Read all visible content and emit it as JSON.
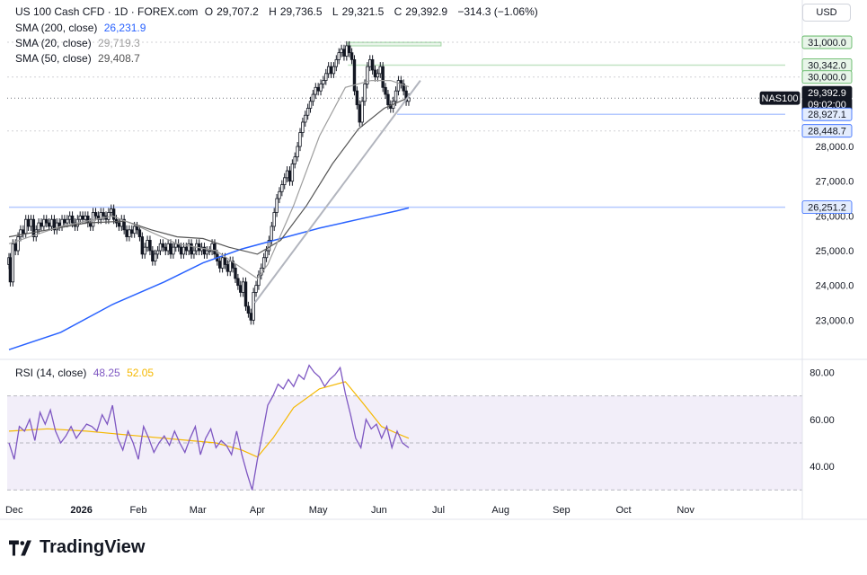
{
  "header": {
    "symbol_title": "US 100 Cash CFD · 1D · FOREX.com",
    "ohlc": [
      {
        "label": "O",
        "value": "29,707.2"
      },
      {
        "label": "H",
        "value": "29,736.5"
      },
      {
        "label": "L",
        "value": "29,321.5"
      },
      {
        "label": "C",
        "value": "29,392.9"
      }
    ],
    "change": "−314.3 (−1.06%)",
    "currency": "USD"
  },
  "indicators": [
    {
      "label": "SMA (200, close)",
      "value": "26,231.9",
      "color": "#2962ff"
    },
    {
      "label": "SMA (20, close)",
      "value": "29,719.3",
      "color": "#9e9e9e"
    },
    {
      "label": "SMA (50, close)",
      "value": "29,408.7",
      "color": "#555555"
    }
  ],
  "rsi_legend": {
    "label": "RSI (14, close)",
    "value1": "48.25",
    "value1_color": "#7e57c2",
    "value2": "52.05",
    "value2_color": "#f5b800"
  },
  "price_labels": [
    {
      "text": "31,000.0",
      "value": 31000,
      "style": "green"
    },
    {
      "text": "30,342.0",
      "value": 30342,
      "style": "green"
    },
    {
      "text": "30,000.0",
      "value": 30000,
      "style": "green"
    },
    {
      "text": "NAS100",
      "value": 29392.9,
      "style": "tag"
    },
    {
      "text": "29,392.9",
      "value": 29392.9,
      "style": "dark"
    },
    {
      "text": "09:02:00",
      "value": 29392.9,
      "style": "dark2"
    },
    {
      "text": "28,927.1",
      "value": 28927.1,
      "style": "blue"
    },
    {
      "text": "28,448.7",
      "value": 28448.7,
      "style": "blue"
    },
    {
      "text": "26,251.2",
      "value": 26251.2,
      "style": "blue"
    }
  ],
  "brand": "TradingView",
  "chart_data": {
    "type": "candlestick",
    "price_axis": {
      "ticks": [
        23000,
        24000,
        25000,
        26000,
        27000,
        28000
      ],
      "tick_labels": [
        "23,000.0",
        "24,000.0",
        "25,000.0",
        "26,000.0",
        "27,000.0",
        "28,000.0"
      ],
      "range": [
        22000,
        31700
      ]
    },
    "rsi_axis": {
      "ticks": [
        40,
        60,
        80
      ],
      "tick_labels": [
        "40.00",
        "60.00",
        "80.00"
      ],
      "range": [
        29,
        84
      ],
      "band": [
        30,
        70
      ]
    },
    "x_axis_labels": [
      "Dec",
      "2026",
      "Feb",
      "Mar",
      "Apr",
      "May",
      "Jun",
      "Jul",
      "Aug",
      "Sep",
      "Oct",
      "Nov"
    ],
    "x_axis_label_days": [
      4,
      56,
      100,
      146,
      192,
      239,
      286,
      332,
      380,
      427,
      475,
      523
    ],
    "price_closes": [
      [
        0,
        24800
      ],
      [
        1,
        24100
      ],
      [
        3,
        25200
      ],
      [
        5,
        25000
      ],
      [
        7,
        25400
      ],
      [
        9,
        25600
      ],
      [
        11,
        25500
      ],
      [
        13,
        25900
      ],
      [
        15,
        25700
      ],
      [
        17,
        25900
      ],
      [
        19,
        25400
      ],
      [
        21,
        25600
      ],
      [
        23,
        25800
      ],
      [
        25,
        25700
      ],
      [
        27,
        25900
      ],
      [
        29,
        25800
      ],
      [
        31,
        25700
      ],
      [
        33,
        25900
      ],
      [
        35,
        25600
      ],
      [
        37,
        25800
      ],
      [
        39,
        25700
      ],
      [
        41,
        25900
      ],
      [
        43,
        25800
      ],
      [
        45,
        25900
      ],
      [
        47,
        26000
      ],
      [
        49,
        25800
      ],
      [
        51,
        25700
      ],
      [
        53,
        25900
      ],
      [
        55,
        26000
      ],
      [
        57,
        25900
      ],
      [
        59,
        26000
      ],
      [
        61,
        25800
      ],
      [
        63,
        25700
      ],
      [
        65,
        26100
      ],
      [
        67,
        26000
      ],
      [
        69,
        25900
      ],
      [
        71,
        26100
      ],
      [
        73,
        26000
      ],
      [
        75,
        25900
      ],
      [
        77,
        26100
      ],
      [
        79,
        26200
      ],
      [
        81,
        25900
      ],
      [
        83,
        25800
      ],
      [
        85,
        25700
      ],
      [
        87,
        25900
      ],
      [
        89,
        25600
      ],
      [
        91,
        25400
      ],
      [
        93,
        25600
      ],
      [
        95,
        25500
      ],
      [
        97,
        25700
      ],
      [
        99,
        25600
      ],
      [
        101,
        25400
      ],
      [
        103,
        24900
      ],
      [
        105,
        25100
      ],
      [
        107,
        25300
      ],
      [
        109,
        25000
      ],
      [
        111,
        24700
      ],
      [
        113,
        24900
      ],
      [
        115,
        25000
      ],
      [
        117,
        25200
      ],
      [
        119,
        25100
      ],
      [
        121,
        25000
      ],
      [
        123,
        25200
      ],
      [
        125,
        24900
      ],
      [
        127,
        25100
      ],
      [
        129,
        25200
      ],
      [
        131,
        25100
      ],
      [
        133,
        24900
      ],
      [
        135,
        25100
      ],
      [
        137,
        25000
      ],
      [
        139,
        25200
      ],
      [
        141,
        24900
      ],
      [
        143,
        25000
      ],
      [
        145,
        25200
      ],
      [
        147,
        25000
      ],
      [
        149,
        25100
      ],
      [
        151,
        24900
      ],
      [
        153,
        25000
      ],
      [
        155,
        25000
      ],
      [
        157,
        25200
      ],
      [
        159,
        24900
      ],
      [
        161,
        24700
      ],
      [
        163,
        24500
      ],
      [
        165,
        24800
      ],
      [
        167,
        24600
      ],
      [
        169,
        24400
      ],
      [
        171,
        24700
      ],
      [
        173,
        24500
      ],
      [
        175,
        24200
      ],
      [
        177,
        24000
      ],
      [
        179,
        23800
      ],
      [
        181,
        24100
      ],
      [
        183,
        23400
      ],
      [
        185,
        23200
      ],
      [
        187,
        23000
      ],
      [
        189,
        23800
      ],
      [
        191,
        24000
      ],
      [
        193,
        24300
      ],
      [
        195,
        24500
      ],
      [
        197,
        24800
      ],
      [
        199,
        25000
      ],
      [
        201,
        25300
      ],
      [
        203,
        25700
      ],
      [
        205,
        26100
      ],
      [
        207,
        26500
      ],
      [
        209,
        26700
      ],
      [
        211,
        26900
      ],
      [
        213,
        27100
      ],
      [
        215,
        27300
      ],
      [
        217,
        27000
      ],
      [
        219,
        27500
      ],
      [
        221,
        27700
      ],
      [
        223,
        28000
      ],
      [
        225,
        28400
      ],
      [
        227,
        28700
      ],
      [
        229,
        28900
      ],
      [
        231,
        29100
      ],
      [
        233,
        29300
      ],
      [
        235,
        29500
      ],
      [
        237,
        29700
      ],
      [
        239,
        29600
      ],
      [
        241,
        29800
      ],
      [
        243,
        29900
      ],
      [
        245,
        30100
      ],
      [
        247,
        30300
      ],
      [
        249,
        30100
      ],
      [
        251,
        30300
      ],
      [
        253,
        30500
      ],
      [
        255,
        30700
      ],
      [
        257,
        30800
      ],
      [
        259,
        30600
      ],
      [
        261,
        30900
      ],
      [
        263,
        30700
      ],
      [
        265,
        30500
      ],
      [
        267,
        29600
      ],
      [
        269,
        29200
      ],
      [
        271,
        28700
      ],
      [
        273,
        29300
      ],
      [
        275,
        29800
      ],
      [
        277,
        30300
      ],
      [
        279,
        30500
      ],
      [
        281,
        30200
      ],
      [
        283,
        30000
      ],
      [
        285,
        30100
      ],
      [
        287,
        30300
      ],
      [
        289,
        29700
      ],
      [
        291,
        29500
      ],
      [
        293,
        29200
      ],
      [
        295,
        29100
      ],
      [
        297,
        29300
      ],
      [
        299,
        29600
      ],
      [
        301,
        29900
      ],
      [
        303,
        29800
      ],
      [
        305,
        29600
      ],
      [
        307,
        29300
      ],
      [
        309,
        29400
      ]
    ],
    "sma200": [
      [
        0,
        22150
      ],
      [
        40,
        22650
      ],
      [
        80,
        23450
      ],
      [
        120,
        24100
      ],
      [
        150,
        24650
      ],
      [
        180,
        25050
      ],
      [
        210,
        25350
      ],
      [
        240,
        25650
      ],
      [
        270,
        25900
      ],
      [
        300,
        26150
      ],
      [
        309,
        26232
      ]
    ],
    "sma50": [
      [
        0,
        25400
      ],
      [
        30,
        25600
      ],
      [
        60,
        25800
      ],
      [
        90,
        25850
      ],
      [
        110,
        25600
      ],
      [
        130,
        25400
      ],
      [
        150,
        25350
      ],
      [
        170,
        25100
      ],
      [
        192,
        24900
      ],
      [
        210,
        25300
      ],
      [
        230,
        26300
      ],
      [
        250,
        27500
      ],
      [
        270,
        28500
      ],
      [
        290,
        29100
      ],
      [
        309,
        29409
      ]
    ],
    "sma20": [
      [
        0,
        25200
      ],
      [
        40,
        25700
      ],
      [
        80,
        26000
      ],
      [
        100,
        25700
      ],
      [
        130,
        25200
      ],
      [
        160,
        25000
      ],
      [
        180,
        24500
      ],
      [
        192,
        24200
      ],
      [
        200,
        24600
      ],
      [
        220,
        26300
      ],
      [
        240,
        28300
      ],
      [
        260,
        29700
      ],
      [
        280,
        29900
      ],
      [
        295,
        29900
      ],
      [
        309,
        29719
      ]
    ],
    "support_line": [
      [
        190,
        23500
      ],
      [
        318,
        29900
      ]
    ],
    "rsi": [
      [
        0,
        50
      ],
      [
        4,
        43
      ],
      [
        8,
        57
      ],
      [
        12,
        55
      ],
      [
        16,
        60
      ],
      [
        20,
        51
      ],
      [
        24,
        63
      ],
      [
        28,
        58
      ],
      [
        32,
        64
      ],
      [
        36,
        55
      ],
      [
        40,
        50
      ],
      [
        44,
        53
      ],
      [
        48,
        57
      ],
      [
        52,
        52
      ],
      [
        56,
        55
      ],
      [
        60,
        58
      ],
      [
        64,
        57
      ],
      [
        68,
        55
      ],
      [
        72,
        62
      ],
      [
        76,
        58
      ],
      [
        80,
        66
      ],
      [
        84,
        52
      ],
      [
        88,
        47
      ],
      [
        92,
        55
      ],
      [
        96,
        50
      ],
      [
        100,
        43
      ],
      [
        104,
        57
      ],
      [
        108,
        52
      ],
      [
        112,
        46
      ],
      [
        116,
        50
      ],
      [
        120,
        53
      ],
      [
        124,
        49
      ],
      [
        128,
        55
      ],
      [
        132,
        50
      ],
      [
        136,
        46
      ],
      [
        140,
        52
      ],
      [
        144,
        57
      ],
      [
        148,
        45
      ],
      [
        152,
        52
      ],
      [
        156,
        56
      ],
      [
        160,
        48
      ],
      [
        164,
        51
      ],
      [
        168,
        49
      ],
      [
        172,
        45
      ],
      [
        176,
        55
      ],
      [
        180,
        45
      ],
      [
        184,
        37
      ],
      [
        188,
        30
      ],
      [
        192,
        43
      ],
      [
        196,
        54
      ],
      [
        200,
        66
      ],
      [
        204,
        70
      ],
      [
        208,
        75
      ],
      [
        212,
        73
      ],
      [
        216,
        77
      ],
      [
        220,
        74
      ],
      [
        224,
        79
      ],
      [
        228,
        77
      ],
      [
        232,
        83
      ],
      [
        236,
        80
      ],
      [
        240,
        78
      ],
      [
        244,
        74
      ],
      [
        248,
        77
      ],
      [
        252,
        79
      ],
      [
        256,
        82
      ],
      [
        260,
        71
      ],
      [
        264,
        62
      ],
      [
        268,
        52
      ],
      [
        272,
        48
      ],
      [
        276,
        60
      ],
      [
        280,
        56
      ],
      [
        284,
        58
      ],
      [
        288,
        52
      ],
      [
        292,
        57
      ],
      [
        296,
        48
      ],
      [
        300,
        55
      ],
      [
        304,
        50
      ],
      [
        309,
        48
      ]
    ],
    "rsi_ma": [
      [
        0,
        55
      ],
      [
        30,
        56
      ],
      [
        60,
        55
      ],
      [
        100,
        53
      ],
      [
        140,
        51
      ],
      [
        160,
        50
      ],
      [
        180,
        47
      ],
      [
        192,
        44
      ],
      [
        204,
        52
      ],
      [
        220,
        65
      ],
      [
        240,
        73
      ],
      [
        260,
        76
      ],
      [
        272,
        68
      ],
      [
        288,
        57
      ],
      [
        300,
        54
      ],
      [
        309,
        52
      ]
    ],
    "zones": [
      {
        "from": 30900,
        "to": 31000,
        "x0": 262,
        "x1": 334,
        "color": "green"
      },
      {
        "from": 30342,
        "to": 30342,
        "x0": 262,
        "x1": 600,
        "color": "green"
      },
      {
        "from": 28927,
        "to": 28927,
        "x0": 300,
        "x1": 600,
        "color": "blue"
      },
      {
        "from": 26251,
        "to": 26251,
        "x0": 0,
        "x1": 600,
        "color": "blue"
      }
    ]
  }
}
